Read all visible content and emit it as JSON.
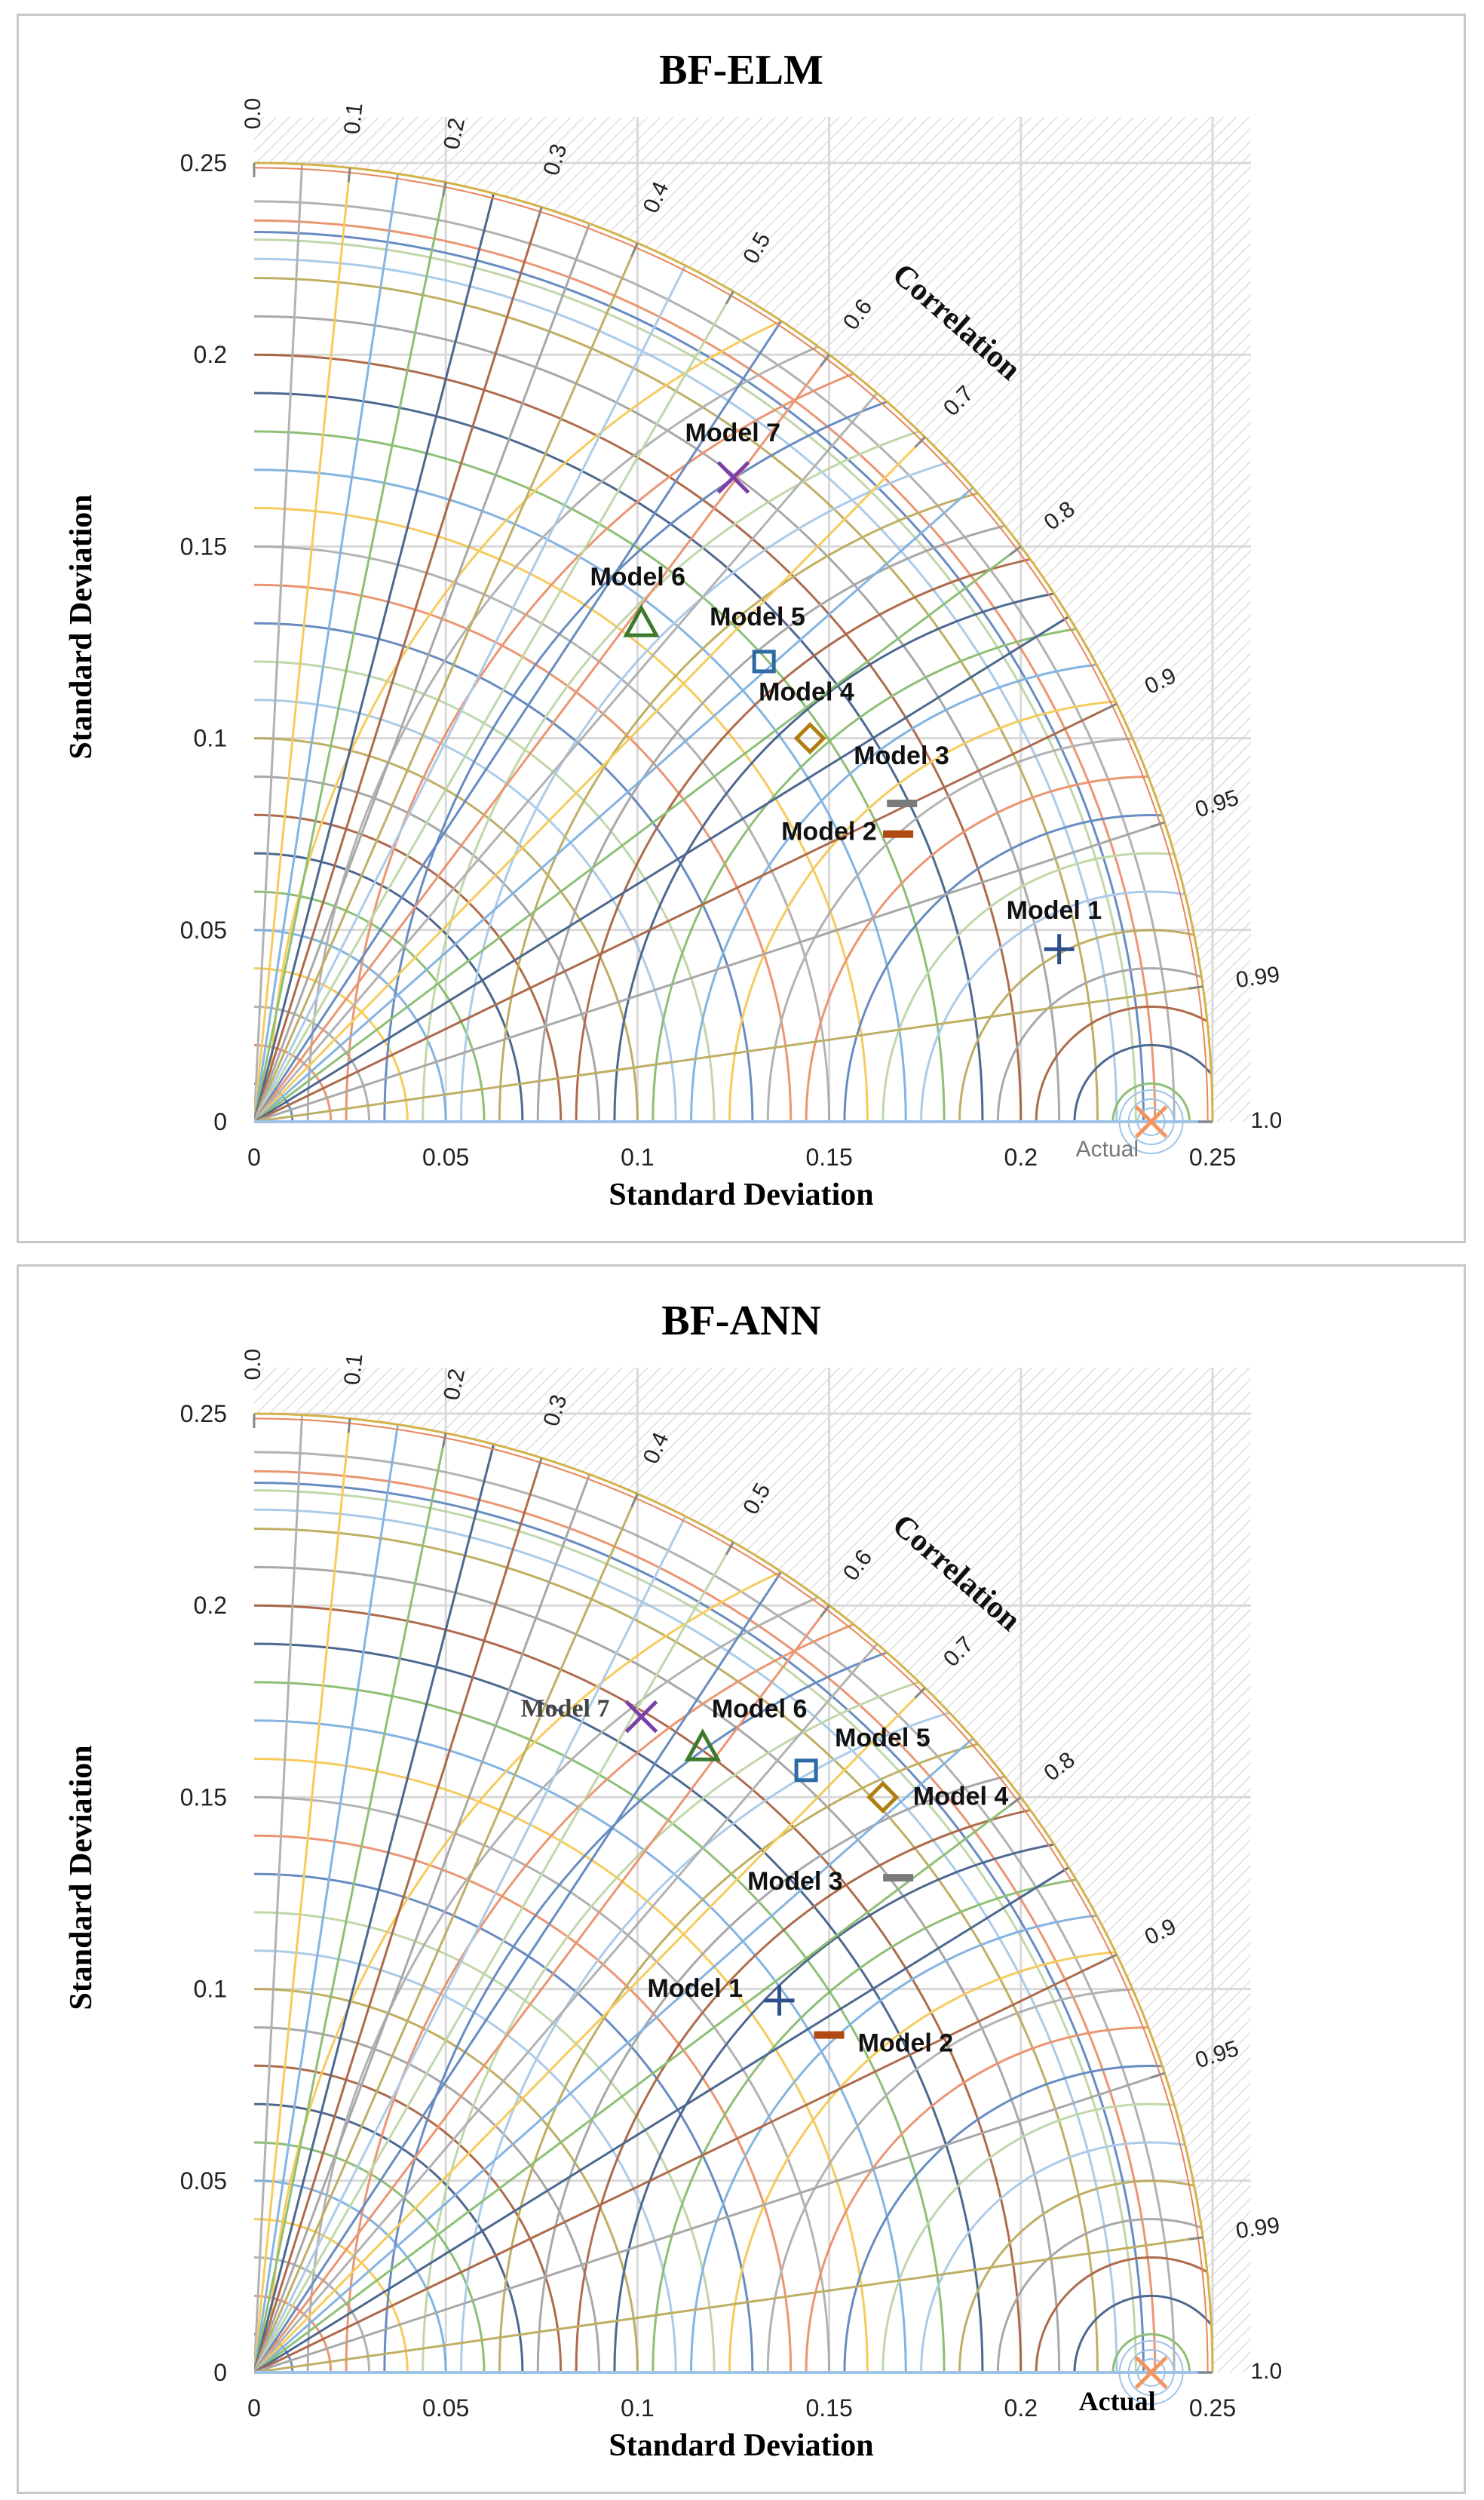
{
  "charts": [
    {
      "title": "BF-ELM",
      "xlabel": "Standard Deviation",
      "ylabel": "Standard Deviation",
      "correlation_label": "Correlation",
      "actual_label": "Actual",
      "chart_data": {
        "type": "scatter",
        "subtype": "taylor-diagram",
        "title": "BF-ELM",
        "xlabel": "Standard Deviation",
        "ylabel": "Standard Deviation",
        "xlim": [
          0,
          0.25
        ],
        "ylim": [
          0,
          0.25
        ],
        "x_ticks": [
          "0",
          "0.05",
          "0.1",
          "0.15",
          "0.2",
          "0.25"
        ],
        "y_ticks": [
          "0",
          "0.05",
          "0.1",
          "0.15",
          "0.2",
          "0.25"
        ],
        "correlation_ticks": [
          "0.0",
          "0.1",
          "0.2",
          "0.3",
          "0.4",
          "0.5",
          "0.6",
          "0.7",
          "0.8",
          "0.9",
          "0.95",
          "0.99",
          "1.0"
        ],
        "reference": {
          "name": "Actual",
          "x": 0.234,
          "y": 0.0,
          "color": "#f4955f"
        },
        "points": [
          {
            "name": "Model 1",
            "x": 0.21,
            "y": 0.045,
            "marker": "plus",
            "color": "#2d4f8a"
          },
          {
            "name": "Model 2",
            "x": 0.168,
            "y": 0.075,
            "marker": "dash",
            "color": "#b04a12"
          },
          {
            "name": "Model 3",
            "x": 0.169,
            "y": 0.083,
            "marker": "dash",
            "color": "#7a7a7a"
          },
          {
            "name": "Model 4",
            "x": 0.145,
            "y": 0.1,
            "marker": "diamond",
            "color": "#b07d0e"
          },
          {
            "name": "Model 5",
            "x": 0.133,
            "y": 0.12,
            "marker": "square",
            "color": "#2e6aa3"
          },
          {
            "name": "Model 6",
            "x": 0.101,
            "y": 0.13,
            "marker": "triangle",
            "color": "#3d7a2e"
          },
          {
            "name": "Model 7",
            "x": 0.125,
            "y": 0.168,
            "marker": "x",
            "color": "#7b3fa6"
          }
        ]
      }
    },
    {
      "title": "BF-ANN",
      "xlabel": "Standard Deviation",
      "ylabel": "Standard Deviation",
      "correlation_label": "Correlation",
      "actual_label": "Actual",
      "chart_data": {
        "type": "scatter",
        "subtype": "taylor-diagram",
        "title": "BF-ANN",
        "xlabel": "Standard Deviation",
        "ylabel": "Standard Deviation",
        "xlim": [
          0,
          0.25
        ],
        "ylim": [
          0,
          0.25
        ],
        "x_ticks": [
          "0",
          "0.05",
          "0.1",
          "0.15",
          "0.2",
          "0.25"
        ],
        "y_ticks": [
          "0",
          "0.05",
          "0.1",
          "0.15",
          "0.2",
          "0.25"
        ],
        "correlation_ticks": [
          "0.0",
          "0.1",
          "0.2",
          "0.3",
          "0.4",
          "0.5",
          "0.6",
          "0.7",
          "0.8",
          "0.9",
          "0.95",
          "0.99",
          "1.0"
        ],
        "reference": {
          "name": "Actual",
          "x": 0.234,
          "y": 0.0,
          "color": "#f4955f"
        },
        "points": [
          {
            "name": "Model 1",
            "x": 0.137,
            "y": 0.097,
            "marker": "plus",
            "color": "#2d4f8a"
          },
          {
            "name": "Model 2",
            "x": 0.15,
            "y": 0.088,
            "marker": "dash",
            "color": "#b04a12"
          },
          {
            "name": "Model 3",
            "x": 0.168,
            "y": 0.129,
            "marker": "dash",
            "color": "#7a7a7a"
          },
          {
            "name": "Model 4",
            "x": 0.164,
            "y": 0.15,
            "marker": "diamond",
            "color": "#b07d0e"
          },
          {
            "name": "Model 5",
            "x": 0.144,
            "y": 0.157,
            "marker": "square",
            "color": "#2e6aa3"
          },
          {
            "name": "Model 6",
            "x": 0.117,
            "y": 0.163,
            "marker": "triangle",
            "color": "#3d7a2e"
          },
          {
            "name": "Model 7",
            "x": 0.101,
            "y": 0.171,
            "marker": "x",
            "color": "#7b3fa6"
          }
        ]
      }
    }
  ],
  "colors": {
    "arc_palette": [
      "#4e79b7",
      "#e8845a",
      "#a5a5a5",
      "#f5c342",
      "#6fa8dc",
      "#7ab55c",
      "#2f4e7c",
      "#a0522d",
      "#999999",
      "#b5a24a",
      "#9dc3e6",
      "#b5d19b"
    ],
    "outer_arc": "#d4b24a",
    "grid": "#d9d9d9"
  }
}
